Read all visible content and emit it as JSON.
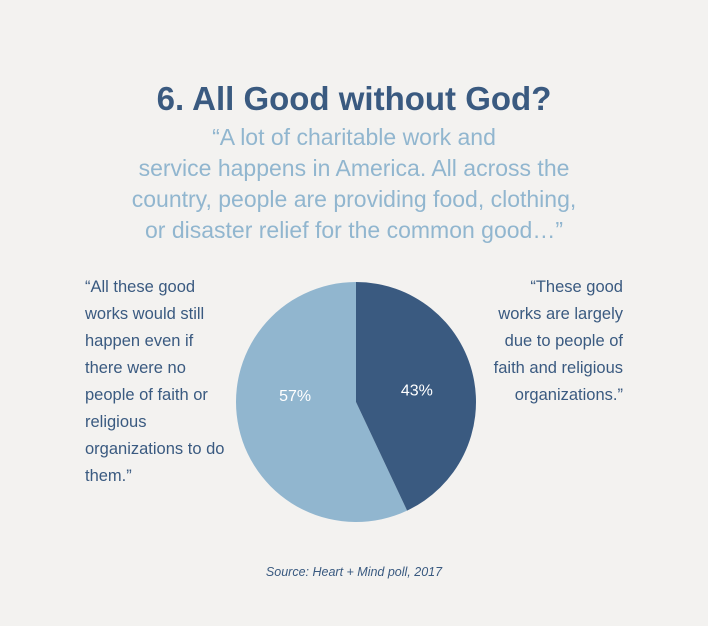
{
  "chart_data": {
    "type": "pie",
    "title": "6. All Good without God?",
    "subtitle": [
      "“A lot of charitable work and",
      "service happens in America. All across the",
      "country, people are providing food, clothing,",
      "or disaster relief for the common good…”"
    ],
    "categories": [
      "“All these good works would still happen even if there were no people of faith or religious organizations to do them.”",
      "“These good works are largely due to people of faith and religious organizations.”"
    ],
    "values": [
      57,
      43
    ],
    "value_labels": [
      "57%",
      "43%"
    ],
    "colors": [
      "#91b6cf",
      "#3a5a80"
    ],
    "source": "Source: Heart + Mind poll, 2017"
  }
}
